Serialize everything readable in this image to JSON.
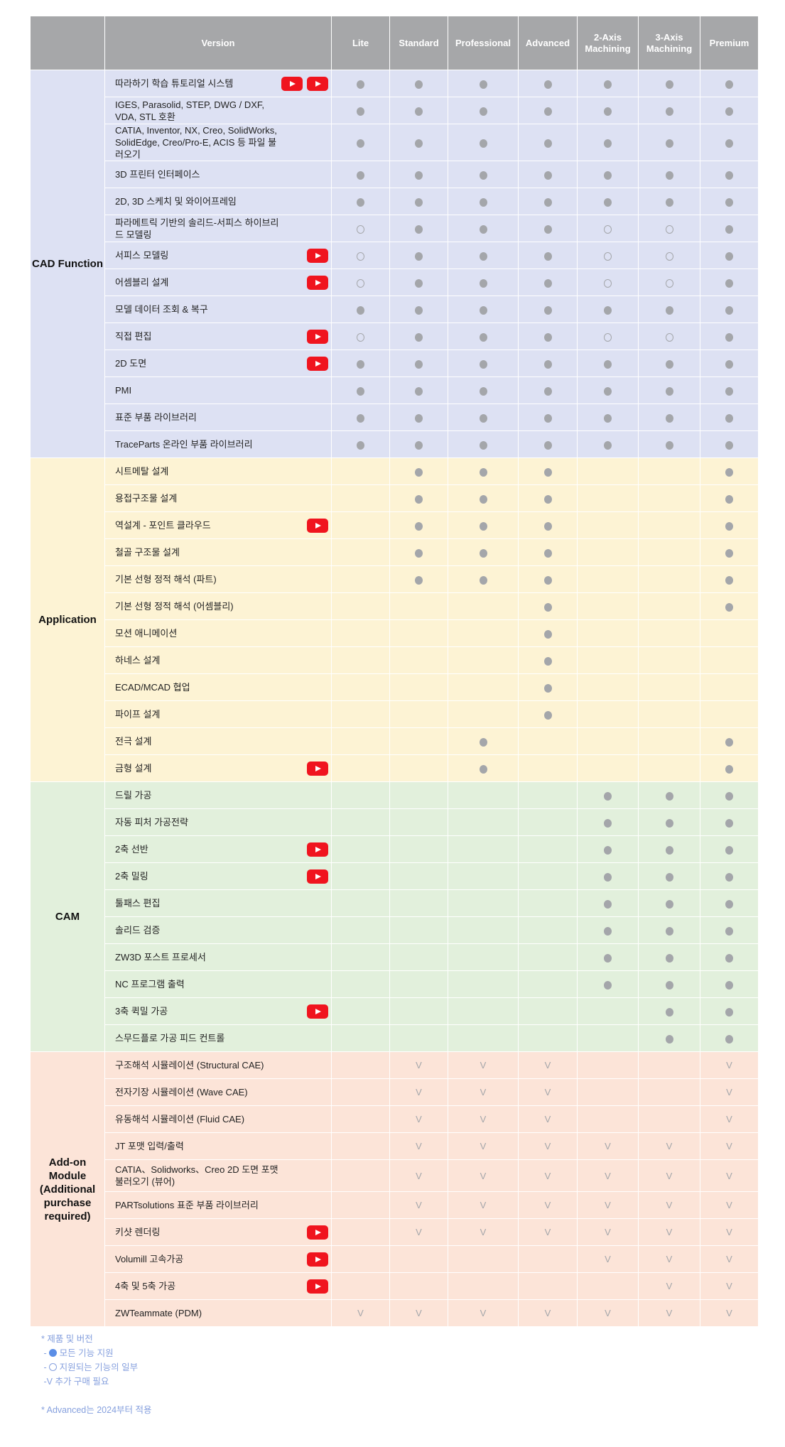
{
  "colors": {
    "header_bg": "#a6a7a9",
    "cad_bg": "#dde1f3",
    "application_bg": "#fdf3d4",
    "cam_bg": "#e2f0dc",
    "addon_bg": "#fce4d8",
    "mark": "#a4a6aa",
    "youtube": "#f0141e",
    "footer_text": "#86a0de"
  },
  "legend_codes": {
    "F": "filled-circle (all features supported)",
    "O": "hollow-circle (partial support)",
    "V": "additional purchase required"
  },
  "header": {
    "version": "Version",
    "columns": [
      "Lite",
      "Standard",
      "Professional",
      "Advanced",
      "2-Axis Machining",
      "3-Axis Machining",
      "Premium"
    ]
  },
  "sections": [
    {
      "label": "CAD Function",
      "bg": "#dde1f3",
      "rows": [
        {
          "label": "따라하기 학습 튜토리얼 시스템",
          "videos": 2,
          "cells": [
            "F",
            "F",
            "F",
            "F",
            "F",
            "F",
            "F"
          ]
        },
        {
          "label": "IGES, Parasolid, STEP, DWG / DXF, VDA, STL 호환",
          "videos": 0,
          "cells": [
            "F",
            "F",
            "F",
            "F",
            "F",
            "F",
            "F"
          ]
        },
        {
          "label": "CATIA, Inventor, NX, Creo, SolidWorks, SolidEdge, Creo/Pro-E, ACIS 등 파일 불러오기",
          "videos": 0,
          "tall": true,
          "cells": [
            "F",
            "F",
            "F",
            "F",
            "F",
            "F",
            "F"
          ]
        },
        {
          "label": "3D 프린터 인터페이스",
          "videos": 0,
          "cells": [
            "F",
            "F",
            "F",
            "F",
            "F",
            "F",
            "F"
          ]
        },
        {
          "label": "2D, 3D 스케치 및 와이어프레임",
          "videos": 0,
          "cells": [
            "F",
            "F",
            "F",
            "F",
            "F",
            "F",
            "F"
          ]
        },
        {
          "label": "파라메트릭 기반의 솔리드-서피스 하이브리드 모델링",
          "videos": 0,
          "cells": [
            "O",
            "F",
            "F",
            "F",
            "O",
            "O",
            "F"
          ]
        },
        {
          "label": "서피스 모델링",
          "videos": 1,
          "cells": [
            "O",
            "F",
            "F",
            "F",
            "O",
            "O",
            "F"
          ]
        },
        {
          "label": "어셈블리 설계",
          "videos": 1,
          "cells": [
            "O",
            "F",
            "F",
            "F",
            "O",
            "O",
            "F"
          ]
        },
        {
          "label": "모델 데이터 조회 & 복구",
          "videos": 0,
          "cells": [
            "F",
            "F",
            "F",
            "F",
            "F",
            "F",
            "F"
          ]
        },
        {
          "label": "직접 편집",
          "videos": 1,
          "cells": [
            "O",
            "F",
            "F",
            "F",
            "O",
            "O",
            "F"
          ]
        },
        {
          "label": "2D 도면",
          "videos": 1,
          "cells": [
            "F",
            "F",
            "F",
            "F",
            "F",
            "F",
            "F"
          ]
        },
        {
          "label": "PMI",
          "videos": 0,
          "cells": [
            "F",
            "F",
            "F",
            "F",
            "F",
            "F",
            "F"
          ]
        },
        {
          "label": "표준 부품 라이브러리",
          "videos": 0,
          "cells": [
            "F",
            "F",
            "F",
            "F",
            "F",
            "F",
            "F"
          ]
        },
        {
          "label": "TraceParts 온라인 부품 라이브러리",
          "videos": 0,
          "cells": [
            "F",
            "F",
            "F",
            "F",
            "F",
            "F",
            "F"
          ]
        }
      ]
    },
    {
      "label": "Application",
      "bg": "#fdf3d4",
      "rows": [
        {
          "label": "시트메탈 설계",
          "videos": 0,
          "cells": [
            "",
            "F",
            "F",
            "F",
            "",
            "",
            "F"
          ]
        },
        {
          "label": "용접구조물 설계",
          "videos": 0,
          "cells": [
            "",
            "F",
            "F",
            "F",
            "",
            "",
            "F"
          ]
        },
        {
          "label": "역설계 - 포인트 클라우드",
          "videos": 1,
          "cells": [
            "",
            "F",
            "F",
            "F",
            "",
            "",
            "F"
          ]
        },
        {
          "label": "철골 구조물 설계",
          "videos": 0,
          "cells": [
            "",
            "F",
            "F",
            "F",
            "",
            "",
            "F"
          ]
        },
        {
          "label": "기본 선형 정적 해석 (파트)",
          "videos": 0,
          "cells": [
            "",
            "F",
            "F",
            "F",
            "",
            "",
            "F"
          ]
        },
        {
          "label": "기본 선형 정적 해석 (어셈블리)",
          "videos": 0,
          "cells": [
            "",
            "",
            "",
            "F",
            "",
            "",
            "F"
          ]
        },
        {
          "label": "모션 애니메이션",
          "videos": 0,
          "cells": [
            "",
            "",
            "",
            "F",
            "",
            "",
            ""
          ]
        },
        {
          "label": "하네스 설계",
          "videos": 0,
          "cells": [
            "",
            "",
            "",
            "F",
            "",
            "",
            ""
          ]
        },
        {
          "label": "ECAD/MCAD 협업",
          "videos": 0,
          "cells": [
            "",
            "",
            "",
            "F",
            "",
            "",
            ""
          ]
        },
        {
          "label": "파이프 설계",
          "videos": 0,
          "cells": [
            "",
            "",
            "",
            "F",
            "",
            "",
            ""
          ]
        },
        {
          "label": "전극 설계",
          "videos": 0,
          "cells": [
            "",
            "",
            "F",
            "",
            "",
            "",
            "F"
          ]
        },
        {
          "label": "금형 설계",
          "videos": 1,
          "cells": [
            "",
            "",
            "F",
            "",
            "",
            "",
            "F"
          ]
        }
      ]
    },
    {
      "label": "CAM",
      "bg": "#e2f0dc",
      "rows": [
        {
          "label": "드릴 가공",
          "videos": 0,
          "cells": [
            "",
            "",
            "",
            "",
            "F",
            "F",
            "F"
          ]
        },
        {
          "label": "자동 피처 가공전략",
          "videos": 0,
          "cells": [
            "",
            "",
            "",
            "",
            "F",
            "F",
            "F"
          ]
        },
        {
          "label": "2축 선반",
          "videos": 1,
          "cells": [
            "",
            "",
            "",
            "",
            "F",
            "F",
            "F"
          ]
        },
        {
          "label": "2축 밀링",
          "videos": 1,
          "cells": [
            "",
            "",
            "",
            "",
            "F",
            "F",
            "F"
          ]
        },
        {
          "label": "툴패스 편집",
          "videos": 0,
          "cells": [
            "",
            "",
            "",
            "",
            "F",
            "F",
            "F"
          ]
        },
        {
          "label": "솔리드 검증",
          "videos": 0,
          "cells": [
            "",
            "",
            "",
            "",
            "F",
            "F",
            "F"
          ]
        },
        {
          "label": "ZW3D 포스트 프로세서",
          "videos": 0,
          "cells": [
            "",
            "",
            "",
            "",
            "F",
            "F",
            "F"
          ]
        },
        {
          "label": "NC 프로그램 출력",
          "videos": 0,
          "cells": [
            "",
            "",
            "",
            "",
            "F",
            "F",
            "F"
          ]
        },
        {
          "label": "3축 퀵밀 가공",
          "videos": 1,
          "cells": [
            "",
            "",
            "",
            "",
            "",
            "F",
            "F"
          ]
        },
        {
          "label": "스무드플로 가공 피드 컨트롤",
          "videos": 0,
          "cells": [
            "",
            "",
            "",
            "",
            "",
            "F",
            "F"
          ]
        }
      ]
    },
    {
      "label": "Add-on Module (Additional purchase required)",
      "bg": "#fce4d8",
      "rows": [
        {
          "label": "구조해석 시뮬레이션 (Structural CAE)",
          "videos": 0,
          "cells": [
            "",
            "V",
            "V",
            "V",
            "",
            "",
            "V"
          ]
        },
        {
          "label": "전자기장 시뮬레이션 (Wave CAE)",
          "videos": 0,
          "cells": [
            "",
            "V",
            "V",
            "V",
            "",
            "",
            "V"
          ]
        },
        {
          "label": "유동해석 시뮬레이션 (Fluid CAE)",
          "videos": 0,
          "cells": [
            "",
            "V",
            "V",
            "V",
            "",
            "",
            "V"
          ]
        },
        {
          "label": "JT 포맷 입력/출력",
          "videos": 0,
          "cells": [
            "",
            "V",
            "V",
            "V",
            "V",
            "V",
            "V"
          ]
        },
        {
          "label": "CATIA、Solidworks、Creo 2D 도면 포맷 불러오기 (뷰어)",
          "videos": 0,
          "tall": true,
          "cells": [
            "",
            "V",
            "V",
            "V",
            "V",
            "V",
            "V"
          ]
        },
        {
          "label": "PARTsolutions 표준 부품 라이브러리",
          "videos": 0,
          "cells": [
            "",
            "V",
            "V",
            "V",
            "V",
            "V",
            "V"
          ]
        },
        {
          "label": "키샷 렌더링",
          "videos": 1,
          "cells": [
            "",
            "V",
            "V",
            "V",
            "V",
            "V",
            "V"
          ]
        },
        {
          "label": "Volumill 고속가공",
          "videos": 1,
          "cells": [
            "",
            "",
            "",
            "",
            "V",
            "V",
            "V"
          ]
        },
        {
          "label": "4축 및 5축 가공",
          "videos": 1,
          "cells": [
            "",
            "",
            "",
            "",
            "",
            "V",
            "V"
          ]
        },
        {
          "label": "ZWTeammate (PDM)",
          "videos": 0,
          "cells": [
            "V",
            "V",
            "V",
            "V",
            "V",
            "V",
            "V"
          ]
        }
      ]
    }
  ],
  "footer": {
    "title": "* 제품 및 버전",
    "full": "모든 기능 지원",
    "partial": "지원되는 기능의 일부",
    "purchase": "-V 추가 구매 필요",
    "dash": "-",
    "note": "* Advanced는 2024부터 적용"
  }
}
